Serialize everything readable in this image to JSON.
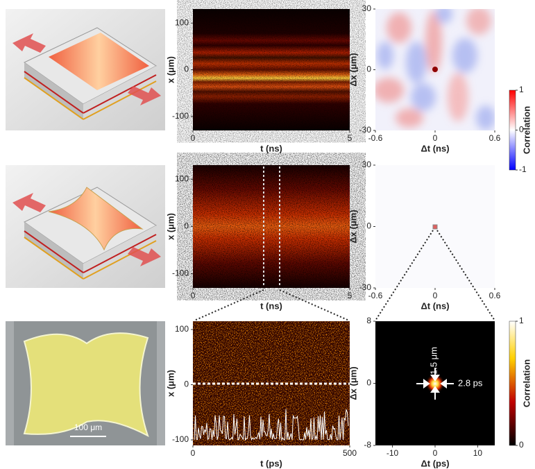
{
  "chart_data": [
    {
      "type": "heatmap",
      "xlabel": "t (ns)",
      "ylabel": "x (μm)",
      "xlim": [
        0,
        5
      ],
      "xticks": [
        0,
        5
      ],
      "ylim": [
        -130,
        130
      ],
      "yticks": [
        -100,
        0,
        100
      ],
      "colormap": "hot"
    },
    {
      "type": "heatmap",
      "xlabel": "Δt (ns)",
      "ylabel": "Δx (μm)",
      "xlim": [
        -0.6,
        0.6
      ],
      "xticks": [
        -0.6,
        0,
        0.6
      ],
      "ylim": [
        -30,
        30
      ],
      "yticks": [
        -30,
        0,
        30
      ],
      "colormap": "bwr"
    },
    {
      "type": "heatmap",
      "xlabel": "t (ns)",
      "ylabel": "x (μm)",
      "xlim": [
        0,
        5
      ],
      "xticks": [
        0,
        5
      ],
      "ylim": [
        -130,
        130
      ],
      "yticks": [
        -100,
        0,
        100
      ],
      "colormap": "hot"
    },
    {
      "type": "heatmap",
      "xlabel": "Δt (ns)",
      "ylabel": "Δx (μm)",
      "xlim": [
        -0.6,
        0.6
      ],
      "xticks": [
        -0.6,
        0,
        0.6
      ],
      "ylim": [
        -30,
        30
      ],
      "yticks": [
        -30,
        0,
        30
      ],
      "colormap": "bwr"
    },
    {
      "type": "heatmap",
      "xlabel": "t (ps)",
      "ylabel": "x (μm)",
      "xlim": [
        0,
        500
      ],
      "xticks": [
        0,
        500
      ],
      "ylim": [
        -110,
        115
      ],
      "yticks": [
        -100,
        0,
        100
      ],
      "colormap": "hot"
    },
    {
      "type": "heatmap",
      "xlabel": "Δt (ps)",
      "ylabel": "Δx (μm)",
      "xlim": [
        -14,
        14
      ],
      "xticks": [
        -10,
        0,
        10
      ],
      "ylim": [
        -8,
        8
      ],
      "yticks": [
        -8,
        0,
        8
      ],
      "colormap": "hot",
      "annotations": [
        "1.5 μm",
        "2.8 ps"
      ]
    },
    {
      "type": "colorbar",
      "label": "Correlation",
      "ylim": [
        -1,
        1
      ],
      "yticks": [
        -1,
        0,
        1
      ],
      "colormap": "bwr"
    },
    {
      "type": "colorbar",
      "label": "Correlation",
      "ylim": [
        0,
        1
      ],
      "yticks": [
        0,
        1
      ],
      "colormap": "hot"
    }
  ],
  "scale_bar": "100 μm"
}
